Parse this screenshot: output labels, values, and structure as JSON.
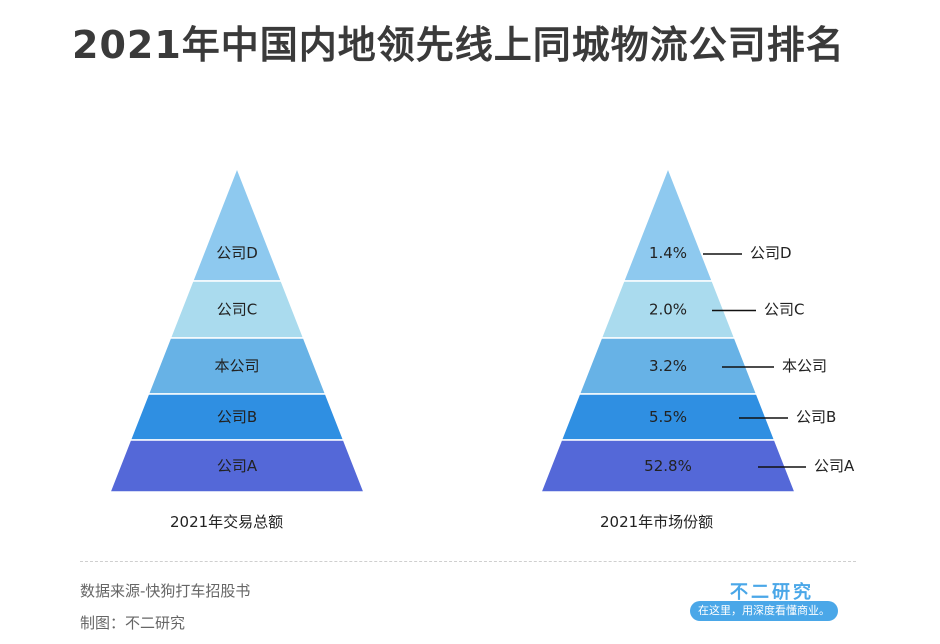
{
  "title": "2021年中国内地领先线上同城物流公司排名",
  "chart_data": [
    {
      "type": "pyramid",
      "caption": "2021年交易总额",
      "levels": [
        "公司D",
        "公司C",
        "本公司",
        "公司B",
        "公司A"
      ]
    },
    {
      "type": "pyramid",
      "caption": "2021年市场份额",
      "levels": [
        {
          "label": "公司D",
          "value": "1.4%"
        },
        {
          "label": "公司C",
          "value": "2.0%"
        },
        {
          "label": "本公司",
          "value": "3.2%"
        },
        {
          "label": "公司B",
          "value": "5.5%"
        },
        {
          "label": "公司A",
          "value": "52.8%"
        }
      ]
    }
  ],
  "colors": {
    "tiers": [
      "#8ec9ef",
      "#aadbee",
      "#67b2e6",
      "#2f8fe2",
      "#5468d8"
    ]
  },
  "footer": {
    "source": "数据来源-快狗打车招股书",
    "credit": "制图：不二研究",
    "brand": "不二研究",
    "slogan": "在这里，用深度看懂商业。"
  }
}
